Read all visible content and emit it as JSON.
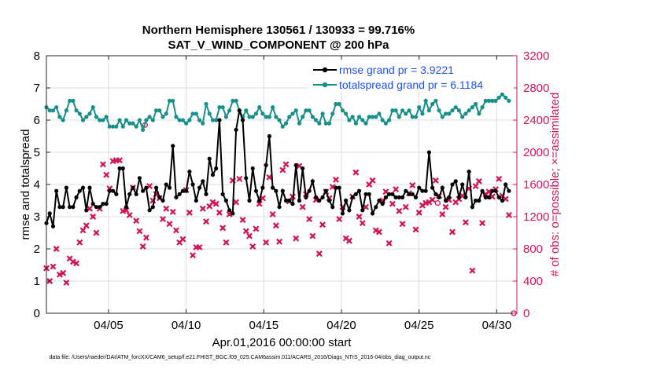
{
  "chart_data": {
    "type": "line",
    "title": "Northern Hemisphere 130561 / 130933 = 99.716%",
    "subtitle": "SAT_V_WIND_COMPONENT @ 200 hPa",
    "xlabel": "Apr.01,2016 00:00:00 start",
    "ylabel_left": "rmse and totalspread",
    "ylabel_right": "# of obs: o=possible; ×=assimilated",
    "footer": "data file: /Users/raeder/DAI/ATM_forcXX/CAM6_setup/f.e21.FHIST_BGC.f09_025.CAM6assim.011/ACARS_2016/Diags_NTrS_2016-04/obs_diag_output.nc",
    "xlim": [
      1.0,
      31.3
    ],
    "ylim_left": [
      0,
      8
    ],
    "ylim_right": [
      0,
      3200
    ],
    "xticks": [
      5,
      10,
      15,
      20,
      25,
      30
    ],
    "xtick_labels": [
      "04/05",
      "04/10",
      "04/15",
      "04/20",
      "04/25",
      "04/30"
    ],
    "yticks_left": [
      0,
      1,
      2,
      3,
      4,
      5,
      6,
      7,
      8
    ],
    "yticks_right": [
      0,
      400,
      800,
      1200,
      1600,
      2000,
      2400,
      2800,
      3200
    ],
    "colors": {
      "rmse": "#000000",
      "spread": "#17908b",
      "obs": "#d3145a",
      "legend_text": "#1f4fff"
    },
    "legend": [
      {
        "label": "rmse grand pr = 3.9221",
        "series": "rmse"
      },
      {
        "label": "totalspread grand pr = 6.1184",
        "series": "spread"
      }
    ],
    "series": [
      {
        "name": "rmse",
        "axis": "left",
        "values": [
          2.8,
          3.1,
          2.7,
          3.8,
          3.3,
          3.3,
          3.9,
          3.3,
          3.3,
          3.6,
          3.8,
          3.9,
          3.2,
          3.9,
          3.4,
          3.3,
          3.3,
          3.4,
          3.4,
          3.8,
          3.8,
          3.7,
          4.5,
          4.5,
          3.3,
          3.7,
          3.9,
          3.7,
          4.2,
          3.8,
          3.9,
          3.2,
          3.3,
          3.9,
          3.6,
          3.5,
          4.0,
          3.9,
          5.2,
          3.6,
          3.7,
          3.8,
          3.8,
          4.4,
          4.0,
          3.5,
          3.9,
          4.1,
          3.7,
          4.8,
          4.3,
          4.5,
          6.0,
          3.7,
          3.5,
          3.2,
          3.1,
          5.7,
          6.3,
          6.0,
          4.2,
          3.5,
          4.5,
          3.8,
          3.5,
          3.9,
          4.6,
          5.5,
          3.9,
          3.8,
          3.3,
          3.8,
          3.5,
          3.5,
          3.4,
          4.6,
          3.5,
          4.5,
          3.6,
          3.8,
          4.1,
          3.6,
          3.5,
          3.6,
          3.8,
          3.5,
          3.3,
          3.9,
          3.9,
          3.1,
          3.5,
          3.2,
          3.6,
          3.7,
          3.8,
          3.2,
          3.7,
          3.7,
          3.1,
          3.3,
          3.5,
          3.4,
          3.6,
          3.7,
          3.7,
          3.6,
          3.6,
          3.6,
          3.8,
          3.7,
          3.7,
          3.6,
          3.9,
          3.8,
          3.8,
          5.0,
          3.9,
          3.7,
          3.6,
          3.9,
          3.5,
          3.6,
          4.0,
          4.1,
          3.6,
          4.0,
          3.6,
          4.4,
          3.3,
          3.5,
          3.5,
          3.8,
          3.6,
          3.6,
          3.8,
          3.8,
          3.6,
          3.5,
          4.0,
          3.8
        ]
      },
      {
        "name": "totalspread",
        "axis": "left",
        "values": [
          6.4,
          6.3,
          6.3,
          6.4,
          6.1,
          6.0,
          6.3,
          6.6,
          6.6,
          6.3,
          6.2,
          6.0,
          6.1,
          6.2,
          6.4,
          6.1,
          6.0,
          6.0,
          6.1,
          5.8,
          5.8,
          5.8,
          6.0,
          5.8,
          6.0,
          5.9,
          5.9,
          5.8,
          6.0,
          5.7,
          6.0,
          6.1,
          6.0,
          6.3,
          6.3,
          6.1,
          6.2,
          6.6,
          6.6,
          6.1,
          6.0,
          6.0,
          5.9,
          6.0,
          6.2,
          6.2,
          6.0,
          5.9,
          6.5,
          6.2,
          6.0,
          6.0,
          6.4,
          6.4,
          6.1,
          6.3,
          6.6,
          6.6,
          6.3,
          6.1,
          6.3,
          6.1,
          6.1,
          6.2,
          6.4,
          6.2,
          6.1,
          6.1,
          6.4,
          6.1,
          6.0,
          5.8,
          5.9,
          6.1,
          6.2,
          6.3,
          5.9,
          6.1,
          6.3,
          6.3,
          6.1,
          6.0,
          5.9,
          6.2,
          5.9,
          5.9,
          6.2,
          6.5,
          6.5,
          6.3,
          6.2,
          6.0,
          6.1,
          5.9,
          6.1,
          6.0,
          5.9,
          6.1,
          6.1,
          6.1,
          6.2,
          6.0,
          5.9,
          6.0,
          6.3,
          6.3,
          6.1,
          6.3,
          6.2,
          6.3,
          6.1,
          6.1,
          6.4,
          6.2,
          6.6,
          6.3,
          6.5,
          6.6,
          6.3,
          6.1,
          6.2,
          6.2,
          6.3,
          6.4,
          6.3,
          6.1,
          6.2,
          6.3,
          6.4,
          6.5,
          6.2,
          6.4,
          6.6,
          6.6,
          6.6,
          6.6,
          6.7,
          6.8,
          6.7,
          6.6
        ]
      },
      {
        "name": "obs_assimilated",
        "axis": "right",
        "marker": "x",
        "values": [
          560,
          400,
          580,
          800,
          480,
          500,
          380,
          680,
          640,
          620,
          880,
          1030,
          1090,
          1300,
          1200,
          1000,
          1300,
          1850,
          1720,
          1550,
          1890,
          1900,
          1900,
          1270,
          1280,
          1220,
          1560,
          1150,
          1020,
          830,
          940,
          1580,
          1400,
          1480,
          1430,
          1170,
          1300,
          1110,
          1260,
          1030,
          880,
          920,
          1530,
          1250,
          720,
          820,
          820,
          1300,
          1140,
          1330,
          1380,
          1360,
          1250,
          1060,
          880,
          1230,
          1650,
          1380,
          1670,
          1160,
          1020,
          960,
          830,
          1050,
          1360,
          1430,
          880,
          1690,
          1230,
          1090,
          890,
          1780,
          1850,
          1390,
          1450,
          930,
          1830,
          1320,
          1480,
          1170,
          960,
          1410,
          740,
          1100,
          1510,
          1430,
          1570,
          1660,
          1170,
          1320,
          930,
          900,
          1450,
          1750,
          1200,
          1120,
          1320,
          1600,
          1650,
          1030,
          1010,
          1400,
          1510,
          870,
          1360,
          1540,
          1270,
          1110,
          1320,
          1490,
          1590,
          1040,
          1250,
          1340,
          1370,
          1380,
          1410,
          1650,
          1460,
          1230,
          1320,
          1410,
          1010,
          1380,
          1420,
          1460,
          1130,
          1550,
          530,
          1580,
          1640,
          1120,
          1480,
          1510,
          1450,
          1540,
          1670,
          1460,
          1420,
          1220
        ]
      }
    ],
    "annotations": [
      {
        "type": "possible_marker",
        "x_day": 7.35,
        "value": 2340
      },
      {
        "type": "possible_marker",
        "x_day": 26.2,
        "value": 1370
      },
      {
        "type": "possible_marker",
        "x_day": 31.1,
        "value": 0
      }
    ]
  }
}
